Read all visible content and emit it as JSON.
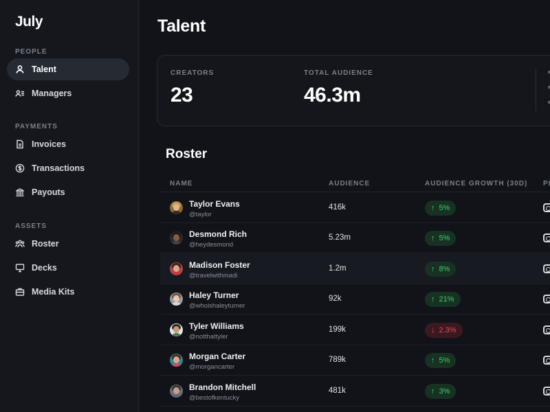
{
  "app": {
    "logo": "July"
  },
  "sidebar": {
    "sections": [
      {
        "label": "PEOPLE"
      },
      {
        "label": "PAYMENTS"
      },
      {
        "label": "ASSETS"
      }
    ],
    "items": [
      {
        "label": "Talent",
        "icon": "person-icon",
        "active": true
      },
      {
        "label": "Managers",
        "icon": "managers-icon"
      },
      {
        "label": "Invoices",
        "icon": "document-icon"
      },
      {
        "label": "Transactions",
        "icon": "dollar-circle-icon"
      },
      {
        "label": "Payouts",
        "icon": "bank-icon"
      },
      {
        "label": "Roster",
        "icon": "group-icon"
      },
      {
        "label": "Decks",
        "icon": "presentation-icon"
      },
      {
        "label": "Media Kits",
        "icon": "briefcase-icon"
      }
    ]
  },
  "main": {
    "title": "Talent",
    "stats": [
      {
        "label": "CREATORS",
        "value": "23"
      },
      {
        "label": "TOTAL AUDIENCE",
        "value": "46.3m"
      }
    ],
    "roster": {
      "title": "Roster",
      "columns": [
        "NAME",
        "AUDIENCE",
        "AUDIENCE GROWTH (30D)",
        "PL"
      ],
      "rows": [
        {
          "name": "Taylor Evans",
          "handle": "@taylor",
          "audience": "416k",
          "growth": "5%",
          "direction": "up"
        },
        {
          "name": "Desmond Rich",
          "handle": "@heydesmond",
          "audience": "5.23m",
          "growth": "5%",
          "direction": "up"
        },
        {
          "name": "Madison Foster",
          "handle": "@travelwithmadi",
          "audience": "1.2m",
          "growth": "8%",
          "direction": "up"
        },
        {
          "name": "Haley Turner",
          "handle": "@whoishaleyturner",
          "audience": "92k",
          "growth": "21%",
          "direction": "up"
        },
        {
          "name": "Tyler Williams",
          "handle": "@notthattyler",
          "audience": "199k",
          "growth": "2.3%",
          "direction": "down"
        },
        {
          "name": "Morgan Carter",
          "handle": "@morgancarter",
          "audience": "789k",
          "growth": "5%",
          "direction": "up"
        },
        {
          "name": "Brandon Mitchell",
          "handle": "@bestofkentucky",
          "audience": "481k",
          "growth": "3%",
          "direction": "up"
        }
      ]
    }
  },
  "colors": {
    "background": "#111319",
    "sidebar": "#15171d",
    "growth_up": "#3ecf6d",
    "growth_down": "#e04b5a"
  }
}
